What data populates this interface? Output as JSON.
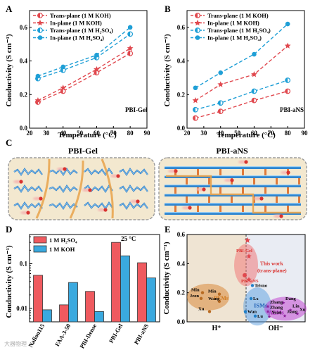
{
  "panel_labels": [
    "A",
    "B",
    "C",
    "D",
    "E"
  ],
  "watermark": "大器物理",
  "chart_data": [
    {
      "id": "A",
      "type": "line",
      "title": "",
      "annotation": "PBI-Gel",
      "xlabel": "Temperature (°C)",
      "ylabel": "Conductivity (S cm⁻¹)",
      "xlim": [
        20,
        90
      ],
      "ylim": [
        0,
        0.7
      ],
      "xticks": [
        20,
        30,
        40,
        50,
        60,
        70,
        80,
        90
      ],
      "yticks": [
        0,
        0.2,
        0.4,
        0.6
      ],
      "legend_position": "top-left",
      "series": [
        {
          "name": "Trans-plane (1 M KOH)",
          "color": "#e0484e",
          "marker": "half-circle",
          "x": [
            25,
            40,
            60,
            80
          ],
          "y": [
            0.155,
            0.22,
            0.33,
            0.445
          ]
        },
        {
          "name": "In-plane (1 M KOH)",
          "color": "#e0484e",
          "marker": "star",
          "x": [
            25,
            40,
            60,
            80
          ],
          "y": [
            0.165,
            0.24,
            0.35,
            0.475
          ]
        },
        {
          "name": "Trans-plane (1 M H₂SO₄)",
          "color": "#1f9fd6",
          "marker": "half-circle",
          "x": [
            25,
            40,
            60,
            80
          ],
          "y": [
            0.295,
            0.345,
            0.42,
            0.56
          ]
        },
        {
          "name": "In-plane (1 M H₂SO₄)",
          "color": "#1f9fd6",
          "marker": "circle",
          "x": [
            25,
            40,
            60,
            80
          ],
          "y": [
            0.31,
            0.365,
            0.435,
            0.6
          ]
        }
      ]
    },
    {
      "id": "B",
      "type": "line",
      "title": "",
      "annotation": "PBI-aNS",
      "xlabel": "Temperature (°C)",
      "ylabel": "Conductivity (S cm⁻¹)",
      "xlim": [
        20,
        90
      ],
      "ylim": [
        0,
        0.7
      ],
      "xticks": [
        20,
        30,
        40,
        50,
        60,
        70,
        80,
        90
      ],
      "yticks": [
        0,
        0.2,
        0.4,
        0.6
      ],
      "legend_position": "top-left",
      "series": [
        {
          "name": "Trans-plane (1 M KOH)",
          "color": "#e0484e",
          "marker": "half-circle",
          "x": [
            25,
            40,
            60,
            80
          ],
          "y": [
            0.06,
            0.1,
            0.165,
            0.22
          ]
        },
        {
          "name": "In-plane (1 M KOH)",
          "color": "#e0484e",
          "marker": "star",
          "x": [
            25,
            40,
            60,
            80
          ],
          "y": [
            0.165,
            0.26,
            0.32,
            0.49
          ]
        },
        {
          "name": "Trans-plane (1 M H₂SO₄)",
          "color": "#1f9fd6",
          "marker": "half-circle",
          "x": [
            25,
            40,
            60,
            80
          ],
          "y": [
            0.11,
            0.15,
            0.22,
            0.285
          ]
        },
        {
          "name": "In-plane (1 M H₂SO₄)",
          "color": "#1f9fd6",
          "marker": "circle",
          "x": [
            25,
            40,
            60,
            80
          ],
          "y": [
            0.24,
            0.33,
            0.44,
            0.62
          ]
        }
      ]
    },
    {
      "id": "C",
      "type": "diagram",
      "titles": [
        "PBI-Gel",
        "PBI-aNS"
      ]
    },
    {
      "id": "D",
      "type": "bar",
      "annotation": "25 °C",
      "ylabel": "Conductivity (S cm⁻¹)",
      "yscale": "log",
      "ylim": [
        0.005,
        0.45
      ],
      "ytick_labels": [
        "0.01",
        "0.1"
      ],
      "yticks": [
        0.01,
        0.1
      ],
      "legend_position": "top-left",
      "categories": [
        "Nafion115",
        "FAA-3-50",
        "PBI-Dense",
        "PBI-Gel",
        "PBI-aNS"
      ],
      "series": [
        {
          "name": "1 M H₂SO₄",
          "color": "#ef5a5f",
          "values": [
            0.055,
            0.012,
            0.024,
            0.3,
            0.105
          ]
        },
        {
          "name": "1 M KOH",
          "color": "#3aa9df",
          "values": [
            0.0093,
            0.038,
            0.0085,
            0.15,
            0.048
          ]
        }
      ]
    },
    {
      "id": "E",
      "type": "scatter",
      "ylabel": "Conductivity (S cm⁻¹)",
      "ylim": [
        0,
        0.6
      ],
      "yticks": [
        0,
        0.2,
        0.4,
        0.6
      ],
      "categories": [
        "H⁺",
        "OH⁻"
      ],
      "regions": [
        {
          "label": "PEMs",
          "color": "#d9883a"
        },
        {
          "label": "ISMs",
          "color": "#5a9ee0"
        },
        {
          "label": "AEMs",
          "color": "#c03ad0"
        },
        {
          "label": "This work (trans-plane)",
          "color": "#f07a7a"
        }
      ],
      "this_work_label": "This work\n(trans-plane)",
      "labels": {
        "pbigel": "PBI-Gel",
        "pbians": "PBI-aNS",
        "min1": "Min",
        "min2": "Min",
        "jeon": "Jeon",
        "wang": "Wang",
        "xu": "Xu",
        "trisno": "Trisno",
        "lx": "Lx",
        "wan": "Wan",
        "lu": "Lu",
        "dang": "Dang",
        "zhang1": "Zhang",
        "zhang2": "Zhang",
        "lin": "Lin",
        "jiang": "Jiang",
        "yuan": "Yuan",
        "xu2": "Xu"
      }
    }
  ]
}
